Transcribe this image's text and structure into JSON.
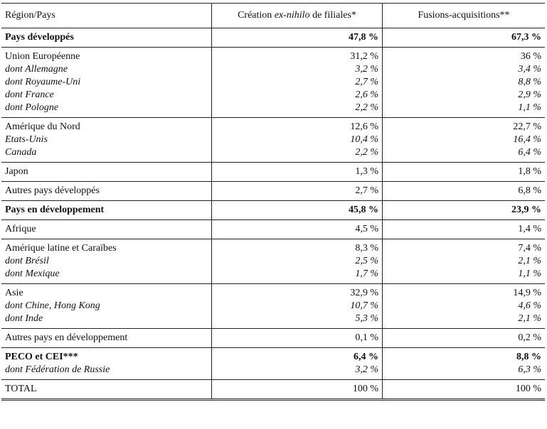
{
  "header": {
    "col1": "Région/Pays",
    "col2_prefix": "Création ",
    "col2_italic": "ex-nihilo",
    "col2_suffix": " de filiales*",
    "col3": "Fusions-acquisitions**"
  },
  "groups": [
    {
      "rows": [
        {
          "label": "Pays développés",
          "c1": "47,8 %",
          "c2": "67,3 %",
          "style": "bold"
        }
      ]
    },
    {
      "rows": [
        {
          "label": "Union Européenne",
          "c1": "31,2 %",
          "c2": "36 %",
          "style": "normal"
        },
        {
          "label": "dont Allemagne",
          "c1": "3,2 %",
          "c2": "3,4 %",
          "style": "italic"
        },
        {
          "label": "dont Royaume-Uni",
          "c1": "2,7 %",
          "c2": "8,8 %",
          "style": "italic"
        },
        {
          "label": "dont France",
          "c1": "2,6 %",
          "c2": "2,9 %",
          "style": "italic"
        },
        {
          "label": "dont Pologne",
          "c1": "2,2 %",
          "c2": "1,1 %",
          "style": "italic"
        }
      ]
    },
    {
      "rows": [
        {
          "label": "Amérique du Nord",
          "c1": "12,6 %",
          "c2": "22,7 %",
          "style": "normal"
        },
        {
          "label": "Etats-Unis",
          "c1": "10,4 %",
          "c2": "16,4 %",
          "style": "italic"
        },
        {
          "label": "Canada",
          "c1": "2,2 %",
          "c2": "6,4 %",
          "style": "italic"
        }
      ]
    },
    {
      "rows": [
        {
          "label": "Japon",
          "c1": "1,3 %",
          "c2": "1,8 %",
          "style": "normal"
        }
      ]
    },
    {
      "rows": [
        {
          "label": "Autres pays développés",
          "c1": "2,7 %",
          "c2": "6,8 %",
          "style": "normal"
        }
      ]
    },
    {
      "rows": [
        {
          "label": "Pays en développement",
          "c1": "45,8 %",
          "c2": "23,9 %",
          "style": "bold"
        }
      ]
    },
    {
      "rows": [
        {
          "label": "Afrique",
          "c1": "4,5 %",
          "c2": "1,4 %",
          "style": "normal"
        }
      ]
    },
    {
      "rows": [
        {
          "label": "Amérique latine et Caraïbes",
          "c1": "8,3 %",
          "c2": "7,4 %",
          "style": "normal"
        },
        {
          "label": "dont Brésil",
          "c1": "2,5 %",
          "c2": "2,1 %",
          "style": "italic"
        },
        {
          "label": "dont Mexique",
          "c1": "1,7 %",
          "c2": "1,1 %",
          "style": "italic"
        }
      ]
    },
    {
      "rows": [
        {
          "label": "Asie",
          "c1": "32,9 %",
          "c2": "14,9 %",
          "style": "normal"
        },
        {
          "label": "dont Chine, Hong Kong",
          "c1": "10,7 %",
          "c2": "4,6 %",
          "style": "italic"
        },
        {
          "label": "dont Inde",
          "c1": "5,3 %",
          "c2": "2,1 %",
          "style": "italic"
        }
      ]
    },
    {
      "rows": [
        {
          "label": "Autres pays en développement",
          "c1": "0,1 %",
          "c2": "0,2 %",
          "style": "normal"
        }
      ]
    },
    {
      "rows": [
        {
          "label": "PECO et CEI***",
          "c1": "6,4 %",
          "c2": "8,8 %",
          "style": "bold"
        },
        {
          "label": "dont Fédération de Russie",
          "c1": "3,2 %",
          "c2": "6,3 %",
          "style": "italic"
        }
      ]
    },
    {
      "rows": [
        {
          "label": "TOTAL",
          "c1": "100 %",
          "c2": "100 %",
          "style": "normal"
        }
      ]
    }
  ]
}
